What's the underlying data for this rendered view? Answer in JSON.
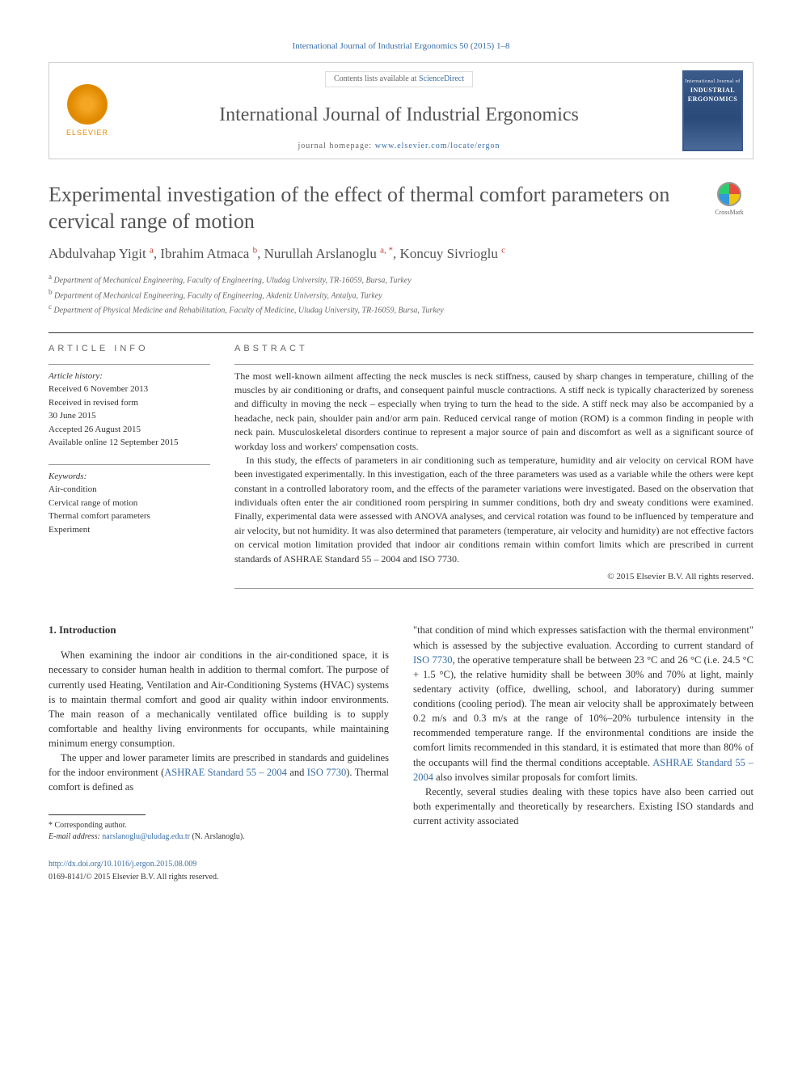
{
  "citation": "International Journal of Industrial Ergonomics 50 (2015) 1–8",
  "header": {
    "contents_prefix": "Contents lists available at ",
    "contents_link": "ScienceDirect",
    "journal_name": "International Journal of Industrial Ergonomics",
    "homepage_prefix": "journal homepage: ",
    "homepage_url": "www.elsevier.com/locate/ergon",
    "publisher": "ELSEVIER",
    "cover_line1": "International Journal of",
    "cover_line2": "INDUSTRIAL",
    "cover_line3": "ERGONOMICS"
  },
  "crossmark_label": "CrossMark",
  "title": "Experimental investigation of the effect of thermal comfort parameters on cervical range of motion",
  "authors_html": "Abdulvahap Yigit <sup class='author-link'>a</sup>, Ibrahim Atmaca <sup class='author-link'>b</sup>, Nurullah Arslanoglu <sup class='author-link'>a, *</sup>, Koncuy Sivrioglu <sup class='author-link'>c</sup>",
  "affiliations": [
    "a Department of Mechanical Engineering, Faculty of Engineering, Uludag University, TR-16059, Bursa, Turkey",
    "b Department of Mechanical Engineering, Faculty of Engineering, Akdeniz University, Antalya, Turkey",
    "c Department of Physical Medicine and Rehabilitation, Faculty of Medicine, Uludag University, TR-16059, Bursa, Turkey"
  ],
  "article_info": {
    "heading": "ARTICLE INFO",
    "history_label": "Article history:",
    "history": [
      "Received 6 November 2013",
      "Received in revised form",
      "30 June 2015",
      "Accepted 26 August 2015",
      "Available online 12 September 2015"
    ],
    "keywords_label": "Keywords:",
    "keywords": [
      "Air-condition",
      "Cervical range of motion",
      "Thermal comfort parameters",
      "Experiment"
    ]
  },
  "abstract": {
    "heading": "ABSTRACT",
    "p1": "The most well-known ailment affecting the neck muscles is neck stiffness, caused by sharp changes in temperature, chilling of the muscles by air conditioning or drafts, and consequent painful muscle contractions. A stiff neck is typically characterized by soreness and difficulty in moving the neck – especially when trying to turn the head to the side. A stiff neck may also be accompanied by a headache, neck pain, shoulder pain and/or arm pain. Reduced cervical range of motion (ROM) is a common finding in people with neck pain. Musculoskeletal disorders continue to represent a major source of pain and discomfort as well as a significant source of workday loss and workers' compensation costs.",
    "p2": "In this study, the effects of parameters in air conditioning such as temperature, humidity and air velocity on cervical ROM have been investigated experimentally. In this investigation, each of the three parameters was used as a variable while the others were kept constant in a controlled laboratory room, and the effects of the parameter variations were investigated. Based on the observation that individuals often enter the air conditioned room perspiring in summer conditions, both dry and sweaty conditions were examined. Finally, experimental data were assessed with ANOVA analyses, and cervical rotation was found to be influenced by temperature and air velocity, but not humidity. It was also determined that parameters (temperature, air velocity and humidity) are not effective factors on cervical motion limitation provided that indoor air conditions remain within comfort limits which are prescribed in current standards of ASHRAE Standard 55 – 2004 and ISO 7730.",
    "copyright": "© 2015 Elsevier B.V. All rights reserved."
  },
  "body": {
    "section_heading": "1. Introduction",
    "col1_p1": "When examining the indoor air conditions in the air-conditioned space, it is necessary to consider human health in addition to thermal comfort. The purpose of currently used Heating, Ventilation and Air-Conditioning Systems (HVAC) systems is to maintain thermal comfort and good air quality within indoor environments. The main reason of a mechanically ventilated office building is to supply comfortable and healthy living environments for occupants, while maintaining minimum energy consumption.",
    "col1_p2_pre": "The upper and lower parameter limits are prescribed in standards and guidelines for the indoor environment (",
    "col1_p2_link1": "ASHRAE Standard 55 – 2004",
    "col1_p2_mid": " and ",
    "col1_p2_link2": "ISO 7730",
    "col1_p2_post": "). Thermal comfort is defined as",
    "col2_p1_pre": "\"that condition of mind which expresses satisfaction with the thermal environment\" which is assessed by the subjective evaluation. According to current standard of ",
    "col2_p1_link1": "ISO 7730",
    "col2_p1_mid": ", the operative temperature shall be between 23 °C and 26 °C (i.e. 24.5 °C + 1.5 °C), the relative humidity shall be between 30% and 70% at light, mainly sedentary activity (office, dwelling, school, and laboratory) during summer conditions (cooling period). The mean air velocity shall be approximately between 0.2 m/s and 0.3 m/s at the range of 10%–20% turbulence intensity in the recommended temperature range. If the environmental conditions are inside the comfort limits recommended in this standard, it is estimated that more than 80% of the occupants will find the thermal conditions acceptable. ",
    "col2_p1_link2": "ASHRAE Standard 55 – 2004",
    "col2_p1_post": " also involves similar proposals for comfort limits.",
    "col2_p2": "Recently, several studies dealing with these topics have also been carried out both experimentally and theoretically by researchers. Existing ISO standards and current activity associated"
  },
  "footnote": {
    "corresponding": "* Corresponding author.",
    "email_label": "E-mail address: ",
    "email": "narslanoglu@uludag.edu.tr",
    "email_suffix": " (N. Arslanoglu)."
  },
  "bottom": {
    "doi": "http://dx.doi.org/10.1016/j.ergon.2015.08.009",
    "issn": "0169-8141/© 2015 Elsevier B.V. All rights reserved."
  },
  "colors": {
    "link": "#3a6ea5",
    "text": "#333333",
    "heading": "#545454"
  }
}
